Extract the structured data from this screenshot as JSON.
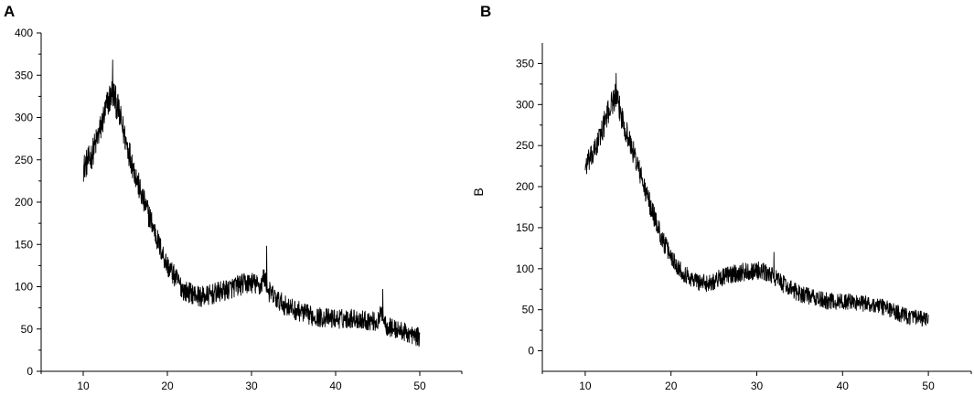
{
  "chart_data": [
    {
      "type": "line",
      "panel_label": "A",
      "xlabel": "",
      "ylabel": "",
      "xlim": [
        5,
        55
      ],
      "ylim": [
        0,
        400
      ],
      "xticks": [
        10,
        20,
        30,
        40,
        50
      ],
      "yticks": [
        0,
        50,
        100,
        150,
        200,
        250,
        300,
        350,
        400
      ],
      "grid": false,
      "series": [
        {
          "color": "#000000",
          "x": [
            10,
            11,
            12,
            13,
            13.5,
            14,
            15,
            16,
            17,
            18,
            19,
            20,
            21,
            22,
            23,
            24,
            25,
            26,
            27,
            28,
            29,
            30,
            31,
            31.5,
            32,
            33,
            34,
            35,
            36,
            37,
            38,
            39,
            40,
            41,
            42,
            43,
            44,
            45,
            45.5,
            46,
            47,
            48,
            49,
            50
          ],
          "y": [
            240,
            255,
            285,
            320,
            330,
            315,
            275,
            240,
            205,
            180,
            150,
            125,
            110,
            95,
            92,
            88,
            90,
            93,
            96,
            100,
            103,
            105,
            100,
            112,
            95,
            85,
            78,
            73,
            70,
            66,
            64,
            63,
            62,
            62,
            63,
            61,
            60,
            58,
            70,
            54,
            50,
            47,
            43,
            40
          ],
          "spikes": [
            [
              13.5,
              368
            ],
            [
              31.8,
              148
            ],
            [
              45.6,
              97
            ]
          ],
          "noise": 18
        }
      ]
    },
    {
      "type": "line",
      "panel_label": "B",
      "xlabel": "",
      "ylabel": "B",
      "xlim": [
        5,
        55
      ],
      "ylim": [
        -25,
        375
      ],
      "xticks": [
        10,
        20,
        30,
        40,
        50
      ],
      "yticks": [
        0,
        50,
        100,
        150,
        200,
        250,
        300,
        350
      ],
      "grid": false,
      "series": [
        {
          "color": "#000000",
          "x": [
            10,
            11,
            12,
            13,
            13.5,
            14,
            15,
            16,
            17,
            18,
            19,
            20,
            21,
            22,
            23,
            24,
            25,
            26,
            27,
            28,
            29,
            30,
            31,
            32,
            33,
            34,
            35,
            36,
            37,
            38,
            39,
            40,
            41,
            42,
            43,
            44,
            45,
            46,
            47,
            48,
            49,
            50
          ],
          "y": [
            225,
            240,
            270,
            300,
            310,
            295,
            260,
            230,
            195,
            165,
            135,
            115,
            100,
            90,
            85,
            82,
            85,
            90,
            93,
            95,
            97,
            98,
            95,
            90,
            82,
            75,
            70,
            67,
            63,
            61,
            60,
            60,
            60,
            58,
            57,
            55,
            53,
            48,
            44,
            41,
            39,
            37
          ],
          "spikes": [
            [
              13.6,
              338
            ],
            [
              32.0,
              120
            ]
          ],
          "noise": 16
        }
      ]
    }
  ]
}
